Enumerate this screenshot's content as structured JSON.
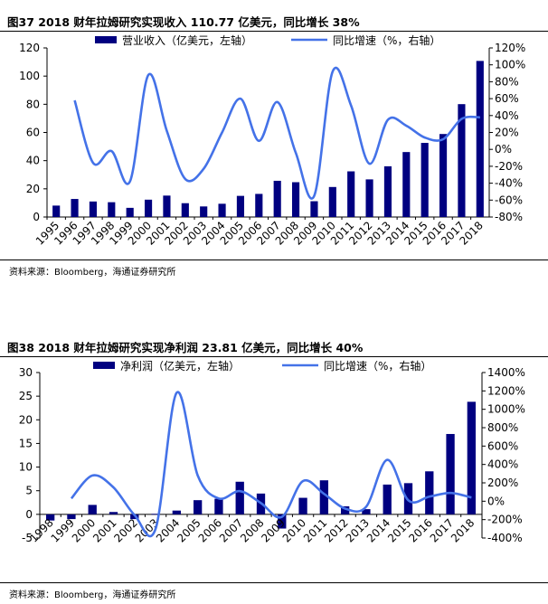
{
  "figures": [
    {
      "title": "图37 2018 财年拉姆研究实现收入 110.77 亿美元，同比增长 38%",
      "source": "资料来源：Bloomberg，海通证券研究所"
    },
    {
      "title": "图38 2018 财年拉姆研究实现净利润 23.81 亿美元，同比增长 40%",
      "source": "资料来源：Bloomberg，海通证券研究所"
    }
  ],
  "colors": {
    "bar": "#000080",
    "line": "#4472e8",
    "axis": "#000000"
  },
  "chart_data": [
    {
      "type": "bar",
      "combo_line": true,
      "categories": [
        "1995",
        "1996",
        "1997",
        "1998",
        "1999",
        "2000",
        "2001",
        "2002",
        "2003",
        "2004",
        "2005",
        "2006",
        "2007",
        "2008",
        "2009",
        "2010",
        "2011",
        "2012",
        "2013",
        "2014",
        "2015",
        "2016",
        "2017",
        "2018"
      ],
      "series": [
        {
          "name": "营业收入（亿美元，左轴）",
          "type": "bar",
          "axis": "left",
          "values": [
            8.1,
            12.8,
            11.0,
            10.5,
            6.5,
            12.3,
            15.2,
            9.8,
            7.5,
            9.4,
            15.0,
            16.4,
            25.7,
            24.7,
            11.2,
            21.3,
            32.4,
            26.7,
            36.0,
            46.1,
            52.6,
            58.9,
            80.1,
            110.77
          ]
        },
        {
          "name": "同比增速（%，右轴）",
          "type": "line",
          "axis": "right",
          "values": [
            null,
            58,
            -16,
            -2,
            -38,
            88,
            22,
            -35,
            -23,
            20,
            60,
            10,
            56,
            -4,
            -55,
            92,
            52,
            -17,
            35,
            28,
            14,
            12,
            36,
            38
          ]
        }
      ],
      "ylim_left": [
        0,
        120
      ],
      "yticks_left": [
        "0",
        "20",
        "40",
        "60",
        "80",
        "100",
        "120"
      ],
      "ylim_right": [
        -80,
        120
      ],
      "yticks_right": [
        "-80%",
        "-60%",
        "-40%",
        "-20%",
        "0%",
        "20%",
        "40%",
        "60%",
        "80%",
        "100%",
        "120%"
      ],
      "legend_position": "top",
      "grid": false
    },
    {
      "type": "bar",
      "combo_line": true,
      "categories": [
        "1998",
        "1999",
        "2000",
        "2001",
        "2002",
        "2003",
        "2004",
        "2005",
        "2006",
        "2007",
        "2008",
        "2009",
        "2010",
        "2011",
        "2012",
        "2013",
        "2014",
        "2015",
        "2016",
        "2017",
        "2018"
      ],
      "series": [
        {
          "name": "净利润（亿美元，左轴）",
          "type": "bar",
          "axis": "left",
          "values": [
            -1.3,
            -1.0,
            2.0,
            0.5,
            -1.0,
            0.1,
            0.8,
            3.0,
            3.3,
            6.9,
            4.4,
            -3.0,
            3.5,
            7.2,
            1.7,
            1.1,
            6.3,
            6.6,
            9.1,
            17.0,
            23.81
          ]
        },
        {
          "name": "同比增速（%，右轴）",
          "type": "line",
          "axis": "right",
          "values": [
            null,
            30,
            280,
            150,
            -150,
            -300,
            1180,
            280,
            30,
            110,
            -20,
            -170,
            220,
            80,
            -80,
            -60,
            450,
            10,
            50,
            90,
            40
          ]
        }
      ],
      "ylim_left": [
        -5,
        30
      ],
      "yticks_left": [
        "-5",
        "0",
        "5",
        "10",
        "15",
        "20",
        "25",
        "30"
      ],
      "ylim_right": [
        -400,
        1400
      ],
      "yticks_right": [
        "-400%",
        "-200%",
        "0%",
        "200%",
        "400%",
        "600%",
        "800%",
        "1000%",
        "1200%",
        "1400%"
      ],
      "legend_position": "top",
      "grid": false
    }
  ]
}
